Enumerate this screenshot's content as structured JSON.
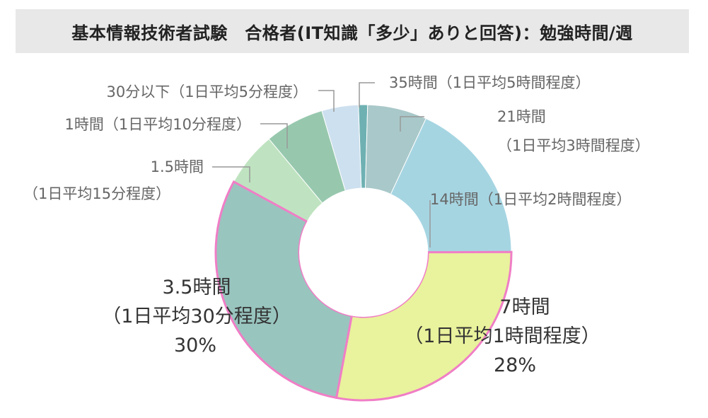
{
  "title": "基本情報技術者試験　合格者(IT知識「多少」ありと回答)：勉強時間/週",
  "chart_data": {
    "type": "pie",
    "title": "基本情報技術者試験　合格者(IT知識「多少」ありと回答)：勉強時間/週",
    "series": [
      {
        "category": "35時間（1日平均5時間程度）",
        "value": 1,
        "color": "#6fb1b3"
      },
      {
        "category": "21時間（1日平均3時間程度）",
        "value": 6.5,
        "color": "#a9c8c9"
      },
      {
        "category": "14時間（1日平均2時間程度）",
        "value": 18,
        "color": "#a6d5e2"
      },
      {
        "category": "7時間（1日平均1時間程度）",
        "value": 28,
        "percent_label": "28%",
        "color": "#e9f29c",
        "highlight": true
      },
      {
        "category": "3.5時間（1日平均30分程度）",
        "value": 30,
        "percent_label": "30%",
        "color": "#99c5bf",
        "highlight": true
      },
      {
        "category": "1.5時間（1日平均15分程度）",
        "value": 6,
        "color": "#bfe3c0"
      },
      {
        "category": "1時間（1日平均10分程度）",
        "value": 6.5,
        "color": "#97c8ae"
      },
      {
        "category": "30分以下（1日平均5分程度）",
        "value": 4,
        "color": "#cde0ef"
      }
    ]
  },
  "labels": {
    "l35": "35時間（1日平均5時間程度）",
    "l21a": "21時間",
    "l21b": "（1日平均3時間程度）",
    "l14": "14時間（1日平均2時間程度）",
    "l7a": "7時間",
    "l7b": "（1日平均1時間程度）",
    "l7c": "28%",
    "l35ha": "3.5時間",
    "l35hb": "（1日平均30分程度）",
    "l35hc": "30%",
    "l15a": "1.5時間",
    "l15b": "（1日平均15分程度）",
    "l1": "1時間（1日平均10分程度）",
    "l30m": "30分以下（1日平均5分程度）"
  }
}
